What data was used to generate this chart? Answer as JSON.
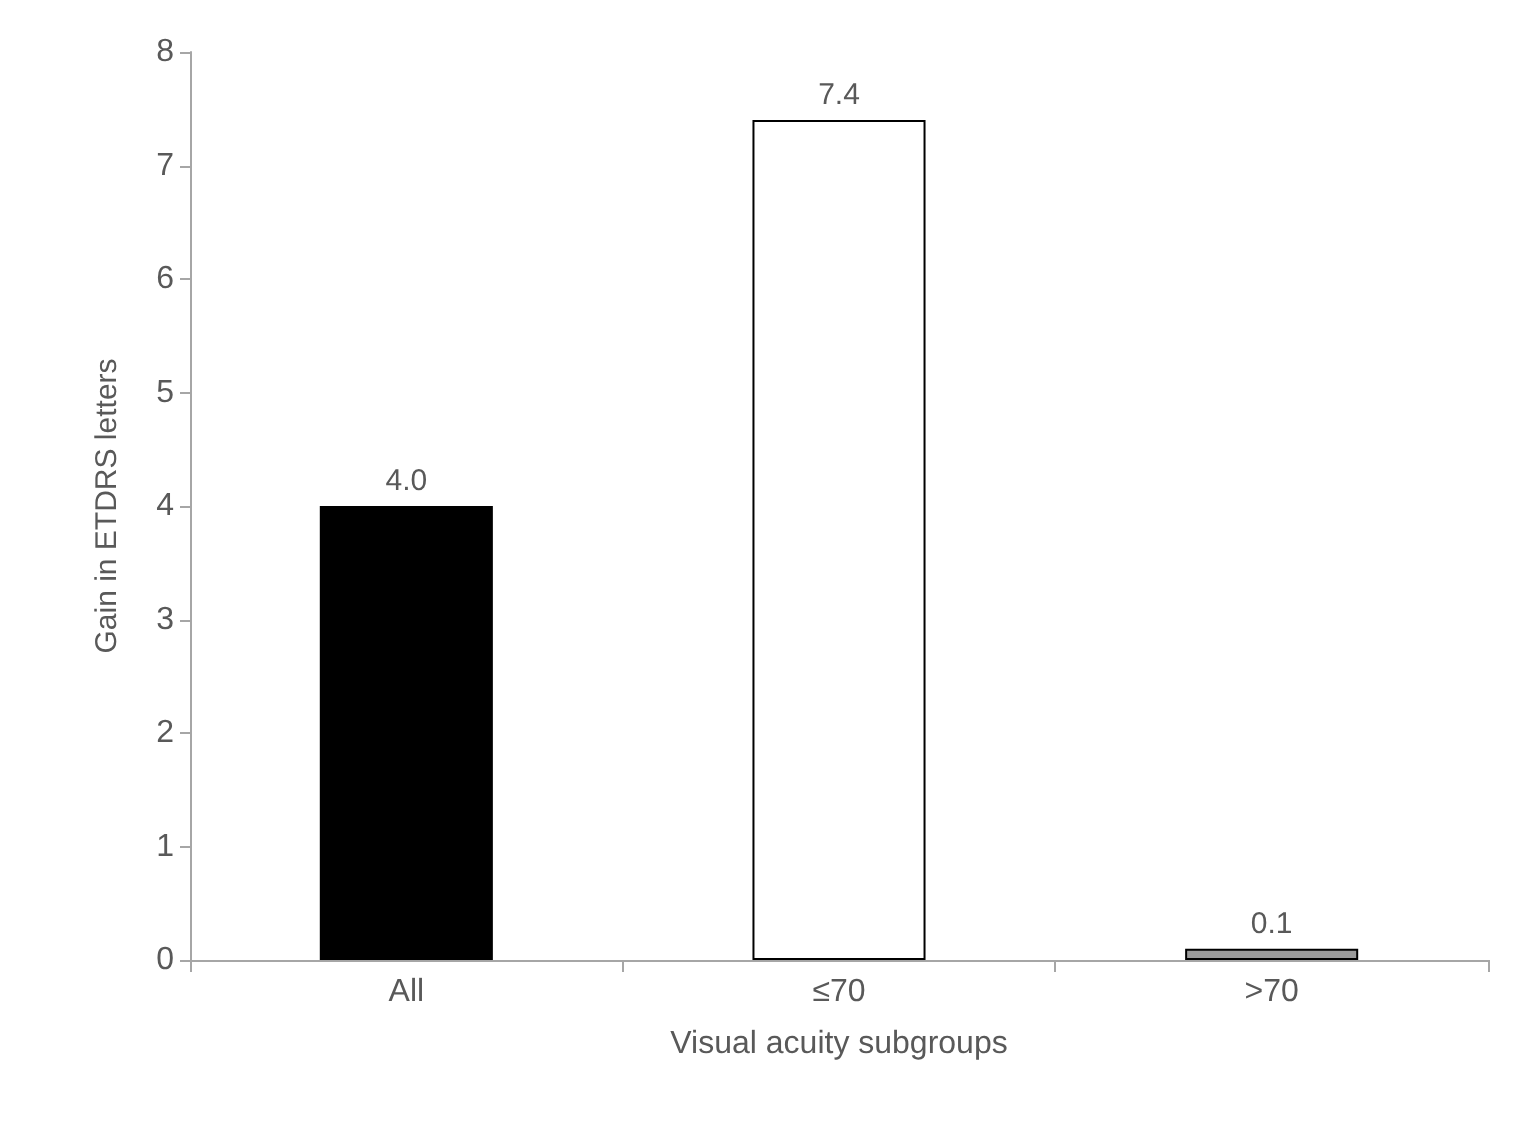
{
  "chart_data": {
    "type": "bar",
    "xlabel": "Visual acuity subgroups",
    "ylabel": "Gain in ETDRS letters",
    "categories": [
      "All",
      "≤70",
      ">70"
    ],
    "values": [
      4.0,
      7.4,
      0.1
    ],
    "colors": [
      "#000000",
      "#ffffff",
      "#9a9a9a"
    ],
    "value_labels": [
      "4.0",
      "7.4",
      "0.1"
    ],
    "ylim": [
      0,
      8
    ],
    "yticks": [
      0,
      1,
      2,
      3,
      4,
      5,
      6,
      7,
      8
    ],
    "grid": false
  }
}
